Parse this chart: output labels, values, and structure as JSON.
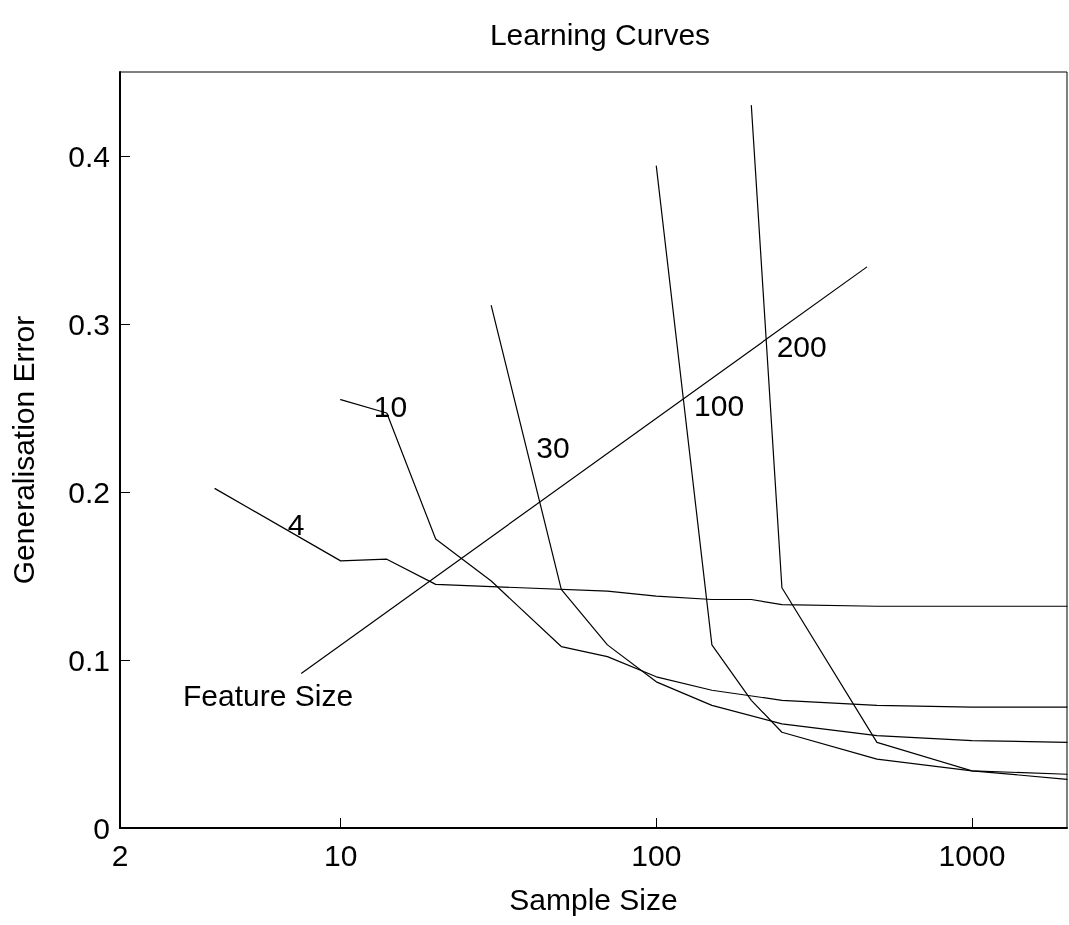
{
  "chart_data": {
    "type": "line",
    "title": "Learning Curves",
    "xlabel": "Sample Size",
    "ylabel": "Generalisation Error",
    "log": "x",
    "xlim": [
      2,
      2000
    ],
    "xticks": [
      2,
      10,
      100,
      1000
    ],
    "ylim": [
      0,
      0.45
    ],
    "yticks": [
      0,
      0.1,
      0.2,
      0.3,
      0.4
    ],
    "grid": false,
    "legend": false,
    "marker": "none",
    "line_style": "solid",
    "annotations": [
      "Feature Size"
    ],
    "series": [
      {
        "name": "4",
        "color": "#000000",
        "x": [
          4,
          10,
          14,
          20,
          70,
          100,
          150,
          200,
          250,
          500,
          1000,
          2000
        ],
        "values": [
          0.202,
          0.159,
          0.16,
          0.145,
          0.141,
          0.138,
          0.136,
          0.136,
          0.133,
          0.132,
          0.132,
          0.132
        ]
      },
      {
        "name": "10",
        "color": "#000000",
        "x": [
          10,
          14,
          20,
          30,
          50,
          70,
          100,
          150,
          250,
          500,
          1000,
          2000
        ],
        "values": [
          0.255,
          0.247,
          0.172,
          0.147,
          0.108,
          0.102,
          0.09,
          0.082,
          0.076,
          0.073,
          0.072,
          0.072
        ]
      },
      {
        "name": "30",
        "color": "#000000",
        "x": [
          30,
          50,
          70,
          100,
          150,
          250,
          500,
          1000,
          2000
        ],
        "values": [
          0.311,
          0.142,
          0.109,
          0.087,
          0.073,
          0.062,
          0.055,
          0.052,
          0.051
        ]
      },
      {
        "name": "100",
        "color": "#000000",
        "x": [
          100,
          150,
          200,
          250,
          500,
          1000,
          2000
        ],
        "values": [
          0.394,
          0.109,
          0.076,
          0.057,
          0.041,
          0.034,
          0.032
        ]
      },
      {
        "name": "200",
        "color": "#000000",
        "x": [
          200,
          250,
          500,
          1000,
          2000
        ],
        "values": [
          0.43,
          0.143,
          0.051,
          0.034,
          0.029
        ]
      }
    ]
  }
}
